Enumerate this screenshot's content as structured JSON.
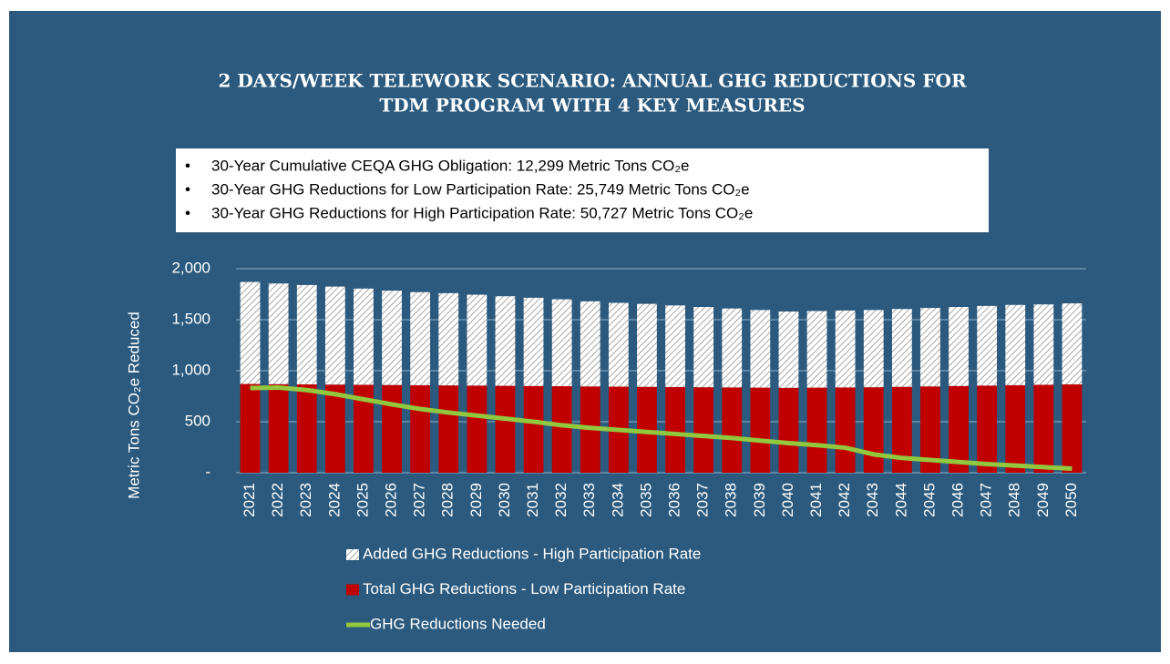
{
  "chart_data": {
    "type": "bar",
    "title": [
      "2 DAYS/WEEK TELEWORK SCENARIO: ANNUAL GHG REDUCTIONS FOR",
      "TDM PROGRAM WITH 4 KEY MEASURES"
    ],
    "annotations": [
      "30-Year Cumulative CEQA GHG Obligation: 12,299 Metric Tons CO₂e",
      "30-Year GHG Reductions for Low Participation Rate: 25,749 Metric Tons CO₂e",
      "30-Year GHG Reductions for High Participation Rate: 50,727 Metric Tons CO₂e"
    ],
    "y_label": "Metric Tons CO₂e Reduced",
    "categories": [
      "2021",
      "2022",
      "2023",
      "2024",
      "2025",
      "2026",
      "2027",
      "2028",
      "2029",
      "2030",
      "2031",
      "2032",
      "2033",
      "2034",
      "2035",
      "2036",
      "2037",
      "2038",
      "2039",
      "2040",
      "2041",
      "2042",
      "2043",
      "2044",
      "2045",
      "2046",
      "2047",
      "2048",
      "2049",
      "2050"
    ],
    "series": [
      {
        "name": "Total GHG Reductions - Low Participation Rate",
        "color": "#c00000",
        "kind": "bar",
        "values": [
          870,
          868,
          866,
          864,
          862,
          860,
          858,
          856,
          854,
          852,
          850,
          848,
          846,
          844,
          842,
          840,
          838,
          836,
          834,
          832,
          834,
          836,
          838,
          842,
          846,
          850,
          854,
          858,
          862,
          866
        ]
      },
      {
        "name": "Added GHG Reductions - High Participation Rate",
        "color": "#a6a6a6",
        "kind": "hatched-bar",
        "values": [
          1000,
          987,
          974,
          961,
          943,
          925,
          912,
          904,
          891,
          878,
          865,
          852,
          834,
          821,
          813,
          800,
          787,
          774,
          761,
          748,
          751,
          754,
          757,
          763,
          769,
          775,
          781,
          787,
          788,
          794
        ]
      },
      {
        "name": "GHG Reductions Needed",
        "color": "#92c83e",
        "kind": "line",
        "values": [
          830,
          835,
          810,
          770,
          720,
          670,
          625,
          590,
          560,
          530,
          500,
          465,
          440,
          420,
          400,
          380,
          360,
          340,
          315,
          290,
          270,
          245,
          180,
          145,
          125,
          105,
          85,
          70,
          55,
          40
        ]
      }
    ],
    "ylim": [
      0,
      2000
    ],
    "yticks": [
      {
        "value": 0,
        "label": "-"
      },
      500,
      {
        "value": 1000,
        "label": "1,000"
      },
      {
        "value": 1500,
        "label": "1,500"
      },
      {
        "value": 2000,
        "label": "2,000"
      }
    ],
    "grid": true
  }
}
